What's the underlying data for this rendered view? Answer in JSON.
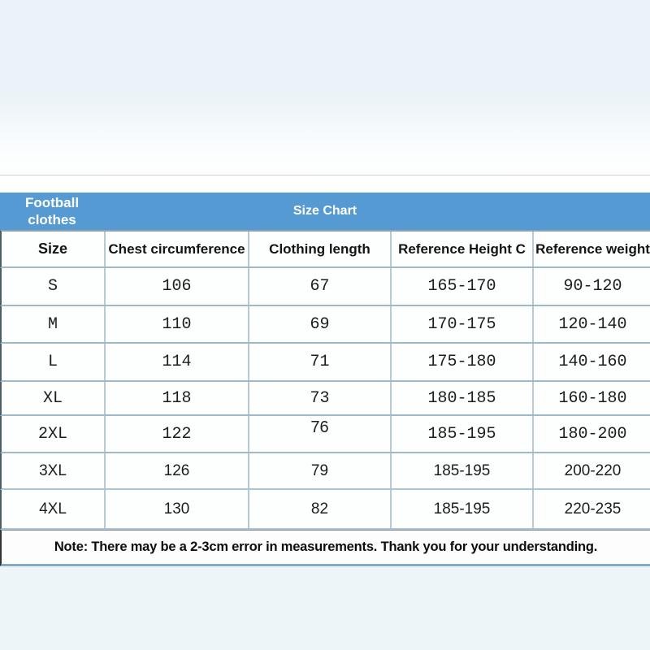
{
  "page": {
    "top_background_color": "#e9f2f7",
    "bottom_background_color": "#eef5f9"
  },
  "table": {
    "accent_color": "#569ad3",
    "product_label": "Football clothes",
    "title": "Size Chart",
    "columns": [
      "Size",
      "Chest circumference",
      "Clothing length",
      "Reference Height C",
      "Reference weight"
    ],
    "rows": [
      {
        "size": "S",
        "chest": "106",
        "length": "67",
        "height": "165-170",
        "weight": "90-120"
      },
      {
        "size": "M",
        "chest": "110",
        "length": "69",
        "height": "170-175",
        "weight": "120-140"
      },
      {
        "size": "L",
        "chest": "114",
        "length": "71",
        "height": "175-180",
        "weight": "140-160"
      },
      {
        "size": "XL",
        "chest": "118",
        "length": "73",
        "height": "180-185",
        "weight": "160-180"
      },
      {
        "size": "2XL",
        "chest": "122",
        "length": "76",
        "height": "185-195",
        "weight": "180-200"
      },
      {
        "size": "3XL",
        "chest": "126",
        "length": "79",
        "height": "185-195",
        "weight": "200-220"
      },
      {
        "size": "4XL",
        "chest": "130",
        "length": "82",
        "height": "185-195",
        "weight": "220-235"
      }
    ],
    "note": "Note: There may be a 2-3cm error in measurements. Thank you for your understanding."
  },
  "chart_data": {
    "type": "table",
    "title": "Size Chart",
    "columns": [
      "Size",
      "Chest circumference",
      "Clothing length",
      "Reference Height C",
      "Reference weight"
    ],
    "rows": [
      [
        "S",
        "106",
        "67",
        "165-170",
        "90-120"
      ],
      [
        "M",
        "110",
        "69",
        "170-175",
        "120-140"
      ],
      [
        "L",
        "114",
        "71",
        "175-180",
        "140-160"
      ],
      [
        "XL",
        "118",
        "73",
        "180-185",
        "160-180"
      ],
      [
        "2XL",
        "122",
        "76",
        "185-195",
        "180-200"
      ],
      [
        "3XL",
        "126",
        "79",
        "185-195",
        "200-220"
      ],
      [
        "4XL",
        "130",
        "82",
        "185-195",
        "220-235"
      ]
    ]
  }
}
